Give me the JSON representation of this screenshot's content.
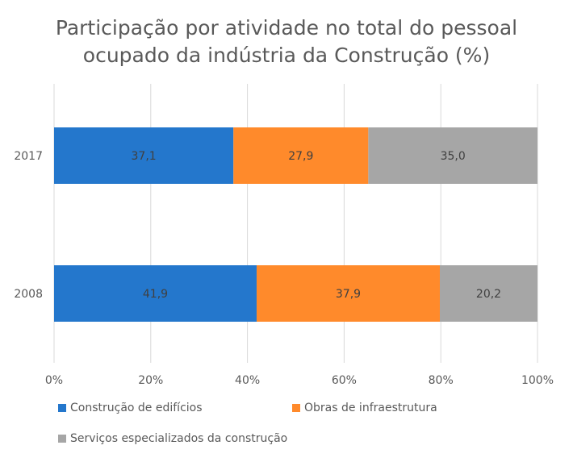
{
  "chart_data": {
    "type": "bar",
    "orientation": "horizontal",
    "stacked": true,
    "title": "Participação por atividade no total do pessoal ocupado da indústria da Construção (%)",
    "title_lines": [
      "Participação por atividade no total do pessoal",
      "ocupado da indústria da Construção (%)"
    ],
    "categories": [
      "2017",
      "2008"
    ],
    "series": [
      {
        "name": "Construção de edifícios",
        "color": "#2477CC",
        "values": [
          37.1,
          41.9
        ],
        "labels": [
          "37,1",
          "41,9"
        ]
      },
      {
        "name": "Obras de infraestrutura",
        "color": "#FF8A2B",
        "values": [
          27.9,
          37.9
        ],
        "labels": [
          "27,9",
          "37,9"
        ]
      },
      {
        "name": "Serviços especializados da construção",
        "color": "#A6A6A6",
        "values": [
          35.0,
          20.2
        ],
        "labels": [
          "35,0",
          "20,2"
        ]
      }
    ],
    "xlim": [
      0,
      100
    ],
    "xticks": [
      "0%",
      "20%",
      "40%",
      "60%",
      "80%",
      "100%"
    ],
    "grid": true,
    "legend_position": "bottom"
  }
}
